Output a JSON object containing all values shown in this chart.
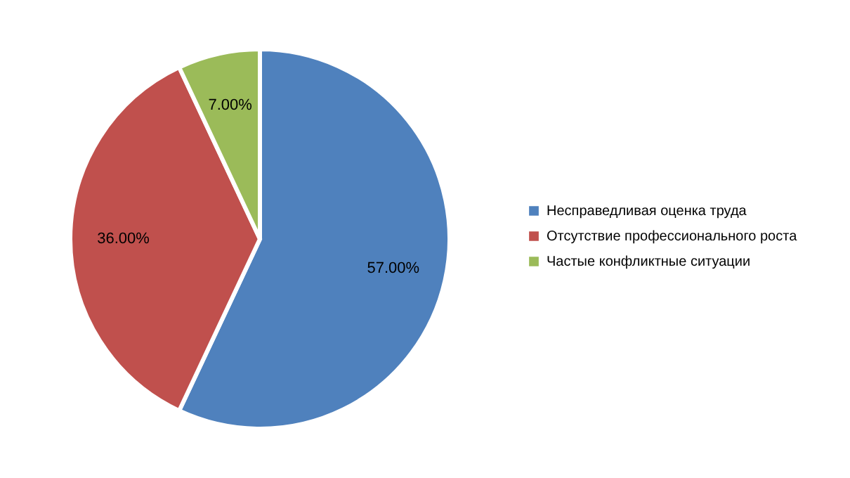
{
  "chart_data": {
    "type": "pie",
    "categories": [
      "Несправедливая оценка труда",
      "Отсутствие профессионального роста",
      "Частые конфликтные ситуации"
    ],
    "values": [
      57,
      36,
      7
    ],
    "colors": [
      "#4f81bd",
      "#c0504d",
      "#9bbb59"
    ],
    "value_labels": [
      "57.00%",
      "36.00%",
      "7.00%"
    ],
    "legend": "right"
  }
}
